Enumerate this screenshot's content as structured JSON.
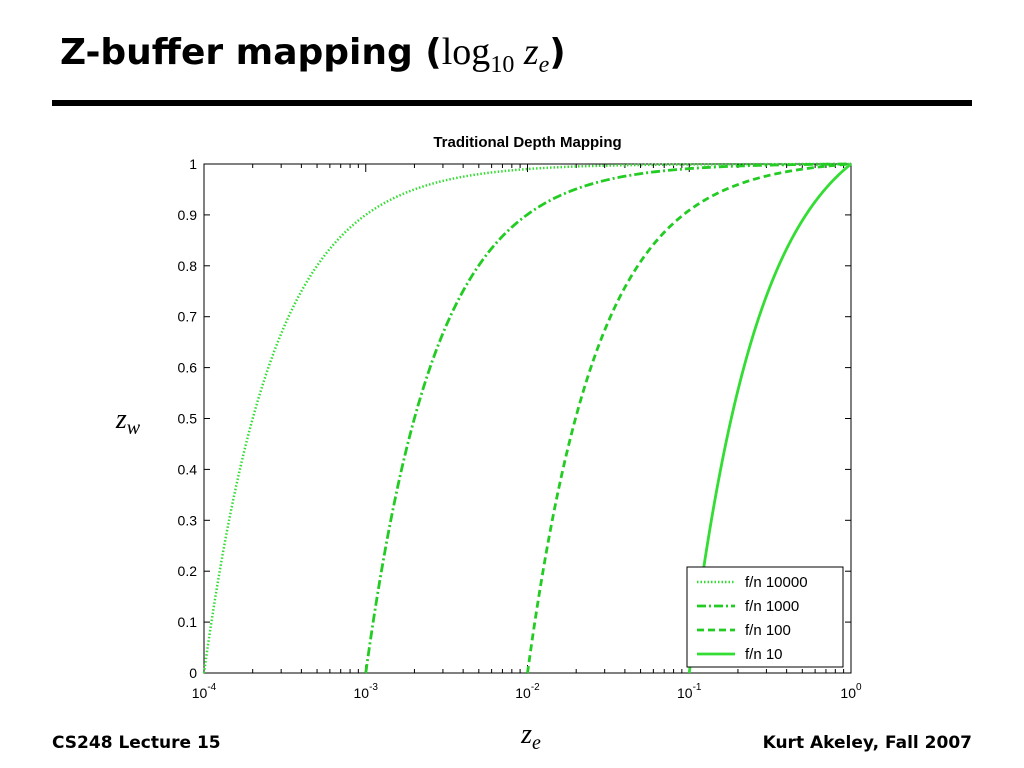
{
  "slide": {
    "title_text": "Z-buffer mapping (",
    "title_log": "log",
    "title_log_sub": "10",
    "title_var": "z",
    "title_var_sub": "e",
    "title_close": ")",
    "footer_left": "CS248 Lecture 15",
    "footer_right": "Kurt Akeley, Fall 2007"
  },
  "chart_data": {
    "type": "line",
    "title": "Traditional Depth Mapping",
    "xlabel": "z",
    "xlabel_sub": "e",
    "ylabel": "z",
    "ylabel_sub": "w",
    "xscale": "log",
    "xlim": [
      0.0001,
      1
    ],
    "ylim": [
      0,
      1
    ],
    "x_ticks": [
      {
        "base": "10",
        "exp": "-4",
        "value": 0.0001
      },
      {
        "base": "10",
        "exp": "-3",
        "value": 0.001
      },
      {
        "base": "10",
        "exp": "-2",
        "value": 0.01
      },
      {
        "base": "10",
        "exp": "-1",
        "value": 0.1
      },
      {
        "base": "10",
        "exp": "0",
        "value": 1
      }
    ],
    "y_ticks": [
      "0",
      "0.1",
      "0.2",
      "0.3",
      "0.4",
      "0.5",
      "0.6",
      "0.7",
      "0.8",
      "0.9",
      "1"
    ],
    "grid": false,
    "legend_position": "bottom-right",
    "series": [
      {
        "name": "f/n 10000",
        "near": 0.0001,
        "style": "dotted",
        "color": "#33dd33"
      },
      {
        "name": "f/n 1000",
        "near": 0.001,
        "style": "dashdot",
        "color": "#22cc22"
      },
      {
        "name": "f/n 100",
        "near": 0.01,
        "style": "dashed",
        "color": "#22cc22"
      },
      {
        "name": "f/n 10",
        "near": 0.1,
        "style": "solid",
        "color": "#33dd33"
      }
    ]
  }
}
